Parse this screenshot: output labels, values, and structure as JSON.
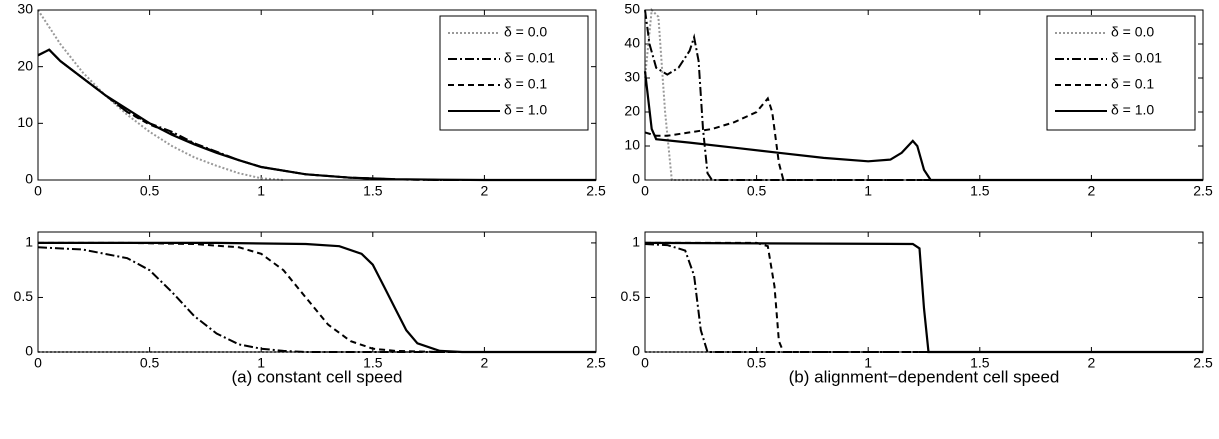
{
  "chart_data": [
    {
      "type": "line",
      "xlim": [
        0,
        2.5
      ],
      "ylim": [
        0,
        30
      ],
      "xticks": [
        0,
        0.5,
        1,
        1.5,
        2,
        2.5
      ],
      "yticks": [
        0,
        10,
        20,
        30
      ],
      "legend": "upper right",
      "series": [
        {
          "name": "δ = 0.0",
          "color": "#999999",
          "style": "dotted",
          "x": [
            0,
            0.1,
            0.2,
            0.3,
            0.4,
            0.5,
            0.6,
            0.7,
            0.8,
            0.9,
            1.0,
            1.1
          ],
          "values": [
            30,
            24,
            19,
            15,
            11.5,
            8.5,
            6,
            4,
            2.5,
            1.2,
            0.3,
            0
          ]
        },
        {
          "name": "δ = 0.01",
          "color": "#000000",
          "style": "dashdot",
          "x": [
            0,
            0.05,
            0.1,
            0.2,
            0.3,
            0.4,
            0.5,
            0.6,
            0.7,
            0.8,
            0.9,
            1.0,
            1.2,
            1.4,
            1.6,
            1.8,
            2.0,
            2.5
          ],
          "values": [
            22,
            23,
            21,
            18,
            15,
            12,
            10,
            8.5,
            6.5,
            5,
            3.5,
            2.3,
            1,
            0.4,
            0.1,
            0,
            0,
            0
          ]
        },
        {
          "name": "δ = 0.1",
          "color": "#000000",
          "style": "dashed",
          "x": [
            0,
            0.05,
            0.1,
            0.2,
            0.3,
            0.4,
            0.5,
            0.6,
            0.7,
            0.8,
            0.9,
            1.0,
            1.2,
            1.4,
            1.6,
            1.8,
            2.0,
            2.5
          ],
          "values": [
            22,
            23,
            21,
            18,
            15,
            12,
            9.8,
            8.2,
            6.4,
            4.9,
            3.5,
            2.3,
            1,
            0.4,
            0.1,
            0,
            0,
            0
          ]
        },
        {
          "name": "δ = 1.0",
          "color": "#000000",
          "style": "solid",
          "x": [
            0,
            0.05,
            0.1,
            0.2,
            0.3,
            0.4,
            0.5,
            0.6,
            0.7,
            0.8,
            0.9,
            1.0,
            1.2,
            1.4,
            1.6,
            1.8,
            2.0,
            2.5
          ],
          "values": [
            22,
            23,
            21,
            18,
            15,
            12.5,
            10,
            8,
            6.3,
            4.8,
            3.5,
            2.3,
            1,
            0.4,
            0.15,
            0.05,
            0,
            0
          ]
        }
      ]
    },
    {
      "type": "line",
      "xlim": [
        0,
        2.5
      ],
      "ylim": [
        0,
        50
      ],
      "xticks": [
        0,
        0.5,
        1,
        1.5,
        2,
        2.5
      ],
      "yticks": [
        0,
        10,
        20,
        30,
        40,
        50
      ],
      "legend": "upper right",
      "series": [
        {
          "name": "δ = 0.0",
          "color": "#999999",
          "style": "dotted",
          "x": [
            0,
            0.03,
            0.06,
            0.09,
            0.12,
            0.2,
            2.5
          ],
          "values": [
            30,
            50,
            48,
            20,
            0,
            0,
            0
          ]
        },
        {
          "name": "δ = 0.01",
          "color": "#000000",
          "style": "dashdot",
          "x": [
            0,
            0.02,
            0.05,
            0.1,
            0.15,
            0.2,
            0.22,
            0.24,
            0.26,
            0.28,
            0.3,
            2.5
          ],
          "values": [
            50,
            40,
            33,
            31,
            33,
            38,
            42,
            35,
            15,
            2,
            0,
            0
          ]
        },
        {
          "name": "δ = 0.1",
          "color": "#000000",
          "style": "dashed",
          "x": [
            0,
            0.05,
            0.1,
            0.2,
            0.3,
            0.4,
            0.5,
            0.55,
            0.57,
            0.6,
            0.62,
            0.7,
            2.5
          ],
          "values": [
            14,
            13,
            13,
            14,
            15,
            17,
            20,
            24,
            20,
            5,
            0,
            0,
            0
          ]
        },
        {
          "name": "δ = 1.0",
          "color": "#000000",
          "style": "solid",
          "x": [
            0,
            0.03,
            0.05,
            0.2,
            0.4,
            0.6,
            0.8,
            1.0,
            1.1,
            1.15,
            1.2,
            1.22,
            1.25,
            1.28,
            1.3,
            2.5
          ],
          "values": [
            32,
            15,
            12,
            11,
            9.5,
            8,
            6.5,
            5.5,
            6,
            8,
            11.5,
            10,
            3,
            0,
            0,
            0
          ]
        }
      ]
    },
    {
      "type": "line",
      "caption": "(a) constant cell speed",
      "xlim": [
        0,
        2.5
      ],
      "ylim": [
        0,
        1.1
      ],
      "xticks": [
        0,
        0.5,
        1,
        1.5,
        2,
        2.5
      ],
      "yticks": [
        0,
        0.5,
        1
      ],
      "series": [
        {
          "color": "#999999",
          "style": "dotted",
          "x": [
            0,
            2.5
          ],
          "values": [
            0,
            0
          ]
        },
        {
          "color": "#000000",
          "style": "dashdot",
          "x": [
            0,
            0.2,
            0.4,
            0.5,
            0.6,
            0.7,
            0.8,
            0.9,
            1.0,
            1.1,
            1.2,
            1.4,
            2.5
          ],
          "values": [
            0.96,
            0.94,
            0.86,
            0.75,
            0.55,
            0.33,
            0.17,
            0.07,
            0.03,
            0.01,
            0,
            0,
            0
          ]
        },
        {
          "color": "#000000",
          "style": "dashed",
          "x": [
            0,
            0.4,
            0.7,
            0.9,
            1.0,
            1.1,
            1.2,
            1.3,
            1.4,
            1.5,
            1.6,
            1.8,
            2.5
          ],
          "values": [
            1,
            1,
            0.99,
            0.96,
            0.9,
            0.75,
            0.5,
            0.25,
            0.1,
            0.03,
            0.01,
            0,
            0
          ]
        },
        {
          "color": "#000000",
          "style": "solid",
          "x": [
            0,
            0.8,
            1.2,
            1.35,
            1.45,
            1.5,
            1.55,
            1.6,
            1.65,
            1.7,
            1.8,
            1.9,
            2.5
          ],
          "values": [
            1,
            1,
            0.99,
            0.97,
            0.9,
            0.8,
            0.6,
            0.4,
            0.2,
            0.08,
            0.01,
            0,
            0
          ]
        }
      ]
    },
    {
      "type": "line",
      "caption": "(b) alignment−dependent cell speed",
      "xlim": [
        0,
        2.5
      ],
      "ylim": [
        0,
        1.1
      ],
      "xticks": [
        0,
        0.5,
        1,
        1.5,
        2,
        2.5
      ],
      "yticks": [
        0,
        0.5,
        1
      ],
      "series": [
        {
          "color": "#999999",
          "style": "dotted",
          "x": [
            0,
            2.5
          ],
          "values": [
            0,
            0
          ]
        },
        {
          "color": "#000000",
          "style": "dashdot",
          "x": [
            0,
            0.1,
            0.18,
            0.22,
            0.25,
            0.28,
            0.3,
            2.5
          ],
          "values": [
            0.99,
            0.98,
            0.93,
            0.7,
            0.2,
            0,
            0,
            0
          ]
        },
        {
          "color": "#000000",
          "style": "dashed",
          "x": [
            0,
            0.5,
            0.55,
            0.58,
            0.6,
            0.62,
            2.5
          ],
          "values": [
            1,
            1,
            0.97,
            0.6,
            0.1,
            0,
            0
          ]
        },
        {
          "color": "#000000",
          "style": "solid",
          "x": [
            0,
            1.2,
            1.23,
            1.25,
            1.27,
            2.5
          ],
          "values": [
            1,
            0.99,
            0.95,
            0.4,
            0,
            0
          ]
        }
      ]
    }
  ]
}
